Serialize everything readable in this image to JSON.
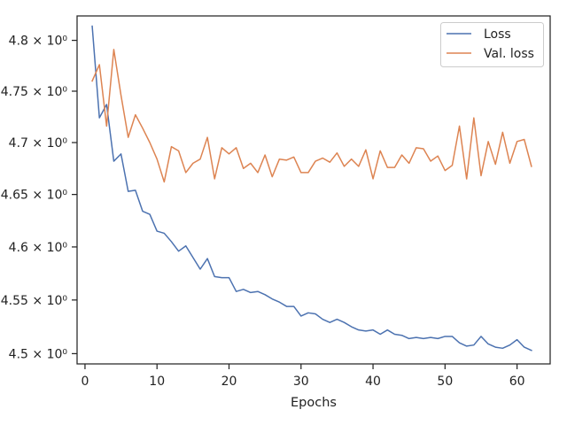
{
  "chart_data": {
    "type": "line",
    "title": "",
    "xlabel": "Epochs",
    "ylabel": "",
    "yscale": "log",
    "xlim": [
      -1.1,
      64.6
    ],
    "ylim": [
      4.4905,
      4.8242
    ],
    "grid": false,
    "legend_position": "top-right",
    "x_ticks": [
      0,
      10,
      20,
      30,
      40,
      50,
      60
    ],
    "y_ticks": [
      {
        "value": 4.5,
        "label": "4.5 × 10⁰"
      },
      {
        "value": 4.55,
        "label": "4.55 × 10⁰"
      },
      {
        "value": 4.6,
        "label": "4.6 × 10⁰"
      },
      {
        "value": 4.65,
        "label": "4.65 × 10⁰"
      },
      {
        "value": 4.7,
        "label": "4.7 × 10⁰"
      },
      {
        "value": 4.75,
        "label": "4.75 × 10⁰"
      },
      {
        "value": 4.8,
        "label": "4.8 × 10⁰"
      }
    ],
    "x": [
      1,
      2,
      3,
      4,
      5,
      6,
      7,
      8,
      9,
      10,
      11,
      12,
      13,
      14,
      15,
      16,
      17,
      18,
      19,
      20,
      21,
      22,
      23,
      24,
      25,
      26,
      27,
      28,
      29,
      30,
      31,
      32,
      33,
      34,
      35,
      36,
      37,
      38,
      39,
      40,
      41,
      42,
      43,
      44,
      45,
      46,
      47,
      48,
      49,
      50,
      51,
      52,
      53,
      54,
      55,
      56,
      57,
      58,
      59,
      60,
      61,
      62
    ],
    "series": [
      {
        "name": "Loss",
        "color": "#4c72b0",
        "values": [
          4.814,
          4.724,
          4.737,
          4.682,
          4.689,
          4.653,
          4.654,
          4.634,
          4.631,
          4.615,
          4.613,
          4.605,
          4.596,
          4.601,
          4.59,
          4.579,
          4.589,
          4.572,
          4.571,
          4.571,
          4.558,
          4.56,
          4.557,
          4.558,
          4.555,
          4.551,
          4.548,
          4.544,
          4.544,
          4.535,
          4.538,
          4.537,
          4.532,
          4.529,
          4.532,
          4.529,
          4.525,
          4.522,
          4.521,
          4.522,
          4.518,
          4.522,
          4.518,
          4.517,
          4.514,
          4.515,
          4.514,
          4.515,
          4.514,
          4.516,
          4.516,
          4.51,
          4.507,
          4.508,
          4.516,
          4.509,
          4.506,
          4.505,
          4.508,
          4.513,
          4.506,
          4.503
        ]
      },
      {
        "name": "Val. loss",
        "color": "#dd8452",
        "values": [
          4.76,
          4.776,
          4.716,
          4.791,
          4.746,
          4.705,
          4.727,
          4.714,
          4.7,
          4.684,
          4.662,
          4.696,
          4.692,
          4.671,
          4.68,
          4.684,
          4.705,
          4.665,
          4.695,
          4.689,
          4.695,
          4.675,
          4.68,
          4.671,
          4.688,
          4.667,
          4.684,
          4.683,
          4.686,
          4.671,
          4.671,
          4.682,
          4.685,
          4.681,
          4.69,
          4.677,
          4.684,
          4.677,
          4.693,
          4.665,
          4.692,
          4.676,
          4.676,
          4.688,
          4.68,
          4.695,
          4.694,
          4.682,
          4.687,
          4.673,
          4.678,
          4.716,
          4.665,
          4.724,
          4.668,
          4.701,
          4.679,
          4.71,
          4.68,
          4.701,
          4.703,
          4.677
        ]
      }
    ]
  }
}
